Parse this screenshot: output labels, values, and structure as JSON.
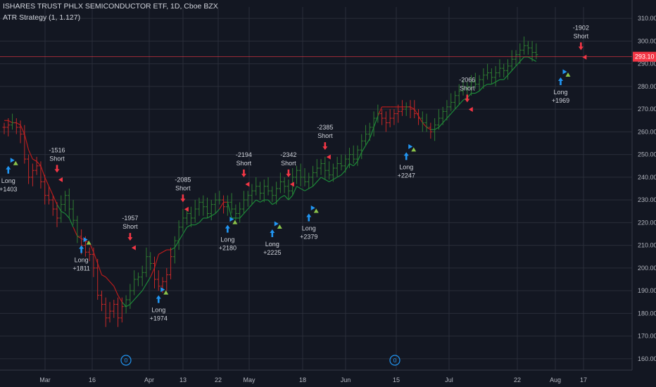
{
  "header": {
    "title": "ISHARES TRUST PHLX SEMICONDUCTOR ETF, 1D, Cboe BZX",
    "indicator": "ATR Strategy (1, 1.127)"
  },
  "colors": {
    "background": "#131722",
    "grid": "#2a2e39",
    "bar_up": "#26a69a",
    "bar_down": "#ef5350",
    "candle_up": "#2e7d32",
    "candle_down": "#c62828",
    "stop_up": "#1b8a3a",
    "stop_down": "#b71c1c",
    "long_arrow": "#2196f3",
    "short_arrow": "#f23645",
    "price_line": "#f23645",
    "triangle_green": "#8bc34a",
    "triangle_yellow": "#ffeb3b"
  },
  "chart_data": {
    "type": "candlestick",
    "title": "ISHARES TRUST PHLX SEMICONDUCTOR ETF, 1D, Cboe BZX",
    "y_axis": {
      "ticks": [
        160,
        170,
        180,
        190,
        200,
        210,
        220,
        230,
        240,
        250,
        260,
        270,
        280,
        290,
        300,
        310
      ],
      "ylim": [
        155,
        315
      ],
      "side": "right"
    },
    "x_axis": {
      "labels": [
        "Mar",
        "16",
        "Apr",
        "13",
        "22",
        "May",
        "18",
        "Jun",
        "15",
        "Jul",
        "22",
        "Aug",
        "17"
      ]
    },
    "last_price": {
      "value": 293.1,
      "label": "293.10"
    },
    "close_series": [
      262,
      263,
      264,
      262,
      259,
      248,
      240,
      243,
      245,
      238,
      232,
      230,
      226,
      222,
      228,
      232,
      226,
      221,
      214,
      210,
      207,
      206,
      200,
      188,
      184,
      178,
      181,
      184,
      178,
      183,
      186,
      190,
      195,
      196,
      198,
      205,
      202,
      195,
      192,
      194,
      197,
      205,
      212,
      218,
      222,
      224,
      222,
      226,
      229,
      227,
      224,
      228,
      230,
      230,
      227,
      229,
      226,
      224,
      226,
      230,
      232,
      234,
      236,
      233,
      236,
      234,
      232,
      235,
      238,
      236,
      234,
      240,
      243,
      240,
      238,
      240,
      242,
      244,
      246,
      243,
      241,
      244,
      246,
      245,
      248,
      250,
      248,
      252,
      256,
      259,
      262,
      266,
      268,
      266,
      264,
      266,
      268,
      269,
      270,
      271,
      270,
      268,
      266,
      264,
      262,
      260,
      263,
      266,
      269,
      271,
      273,
      276,
      278,
      279,
      280,
      282,
      281,
      283,
      285,
      286,
      284,
      286,
      288,
      287,
      289,
      292,
      294,
      296,
      298,
      297,
      295,
      294
    ],
    "stop_series": [
      265,
      265,
      264,
      264,
      263,
      259,
      252,
      248,
      247,
      245,
      240,
      236,
      232,
      228,
      225,
      224,
      222,
      218,
      214,
      213,
      212,
      211,
      207,
      202,
      197,
      196,
      194,
      192,
      188,
      185,
      183,
      184,
      186,
      188,
      190,
      193,
      196,
      200,
      206,
      207,
      208,
      208,
      209,
      212,
      215,
      218,
      219,
      219,
      220,
      222,
      222,
      223,
      224,
      226,
      229,
      229,
      222,
      222,
      222,
      224,
      226,
      228,
      230,
      229,
      230,
      230,
      228,
      229,
      231,
      232,
      230,
      232,
      236,
      235,
      234,
      235,
      236,
      238,
      240,
      239,
      238,
      239,
      240,
      241,
      243,
      246,
      245,
      247,
      251,
      254,
      257,
      262,
      267,
      271,
      271,
      271,
      271,
      271,
      271,
      271,
      271,
      270,
      267,
      264,
      262,
      261,
      261,
      262,
      264,
      266,
      268,
      270,
      272,
      274,
      275,
      277,
      277,
      278,
      280,
      281,
      281,
      282,
      283,
      283,
      285,
      287,
      289,
      291,
      293,
      293,
      292,
      291
    ],
    "trades": [
      {
        "type": "Long",
        "label": "Long",
        "value": "+1403",
        "x_index": 1,
        "price": 245
      },
      {
        "type": "Short",
        "label": "Short",
        "value": "-1516",
        "x_index": 13,
        "price": 242
      },
      {
        "type": "Long",
        "label": "Long",
        "value": "+1811",
        "x_index": 19,
        "price": 210
      },
      {
        "type": "Short",
        "label": "Short",
        "value": "-1957",
        "x_index": 31,
        "price": 212
      },
      {
        "type": "Long",
        "label": "Long",
        "value": "+1974",
        "x_index": 38,
        "price": 188
      },
      {
        "type": "Short",
        "label": "Short",
        "value": "-2085",
        "x_index": 44,
        "price": 229
      },
      {
        "type": "Long",
        "label": "Long",
        "value": "+2180",
        "x_index": 55,
        "price": 219
      },
      {
        "type": "Short",
        "label": "Short",
        "value": "-2194",
        "x_index": 59,
        "price": 240
      },
      {
        "type": "Long",
        "label": "Long",
        "value": "+2225",
        "x_index": 66,
        "price": 217
      },
      {
        "type": "Short",
        "label": "Short",
        "value": "-2342",
        "x_index": 70,
        "price": 240
      },
      {
        "type": "Long",
        "label": "Long",
        "value": "+2379",
        "x_index": 75,
        "price": 224
      },
      {
        "type": "Short",
        "label": "Short",
        "value": "-2385",
        "x_index": 79,
        "price": 252
      },
      {
        "type": "Long",
        "label": "Long",
        "value": "+2247",
        "x_index": 99,
        "price": 251
      },
      {
        "type": "Short",
        "label": "Short",
        "value": "-2066",
        "x_index": 114,
        "price": 273
      },
      {
        "type": "Long",
        "label": "Long",
        "value": "+1969",
        "x_index": 137,
        "price": 284
      },
      {
        "type": "Short",
        "label": "Short",
        "value": "-1902",
        "x_index": 142,
        "price": 296
      }
    ],
    "events": [
      {
        "label": "0",
        "x_index": 31
      },
      {
        "label": "0",
        "x_index": 101
      }
    ]
  }
}
